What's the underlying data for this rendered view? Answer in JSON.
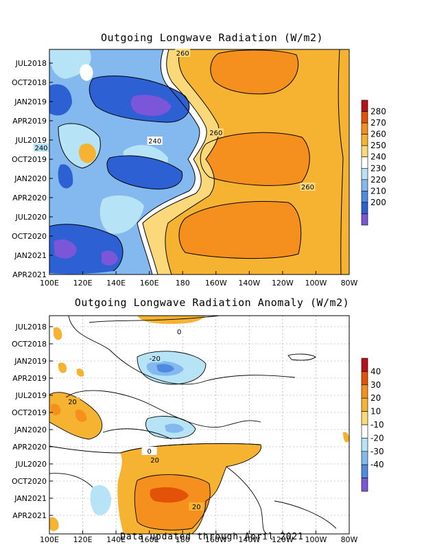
{
  "footer": "Data updated through April 2021",
  "chart_data": [
    {
      "type": "heatmap",
      "title": "Outgoing Longwave Radiation (W/m2)",
      "x_tick_labels": [
        "100E",
        "120E",
        "140E",
        "160E",
        "180",
        "160W",
        "140W",
        "120W",
        "100W",
        "80W"
      ],
      "y_tick_labels": [
        "JUL2018",
        "OCT2018",
        "JAN2019",
        "APR2019",
        "JUL2019",
        "OCT2019",
        "JAN2020",
        "APR2020",
        "JUL2020",
        "OCT2020",
        "JAN2021",
        "APR2021"
      ],
      "colorbar": {
        "levels": [
          "280",
          "270",
          "260",
          "250",
          "240",
          "230",
          "220",
          "210",
          "200"
        ],
        "colors": [
          "#b5121b",
          "#e35209",
          "#f58f1e",
          "#f6b332",
          "#fbd87a",
          "#ffffff",
          "#b6e3f5",
          "#84b9f0",
          "#4d8ae0",
          "#2c60d3",
          "#7b56d8"
        ]
      },
      "contour_labels": [
        {
          "text": "260",
          "x": "180",
          "y": "JUL2018"
        },
        {
          "text": "260",
          "x": "160W",
          "y": "JUL2019"
        },
        {
          "text": "240",
          "x": "160E",
          "y": "JUL2019"
        },
        {
          "text": "240",
          "x": "100E",
          "y": "JUL2019"
        },
        {
          "text": "260",
          "x": "100W",
          "y": "APR2020"
        }
      ]
    },
    {
      "type": "heatmap",
      "title": "Outgoing Longwave Radiation Anomaly (W/m2)",
      "x_tick_labels": [
        "100E",
        "120E",
        "140E",
        "160E",
        "180",
        "160W",
        "140W",
        "120W",
        "100W",
        "80W"
      ],
      "y_tick_labels": [
        "JUL2018",
        "OCT2018",
        "JAN2019",
        "APR2019",
        "JUL2019",
        "OCT2019",
        "JAN2020",
        "APR2020",
        "JUL2020",
        "OCT2020",
        "JAN2021",
        "APR2021"
      ],
      "grid": true,
      "colorbar": {
        "levels": [
          "40",
          "30",
          "20",
          "10",
          "-10",
          "-20",
          "-30",
          "-40"
        ],
        "colors": [
          "#b5121b",
          "#e35209",
          "#f58f1e",
          "#f6b332",
          "#fbd87a",
          "#ffffff",
          "#b6e3f5",
          "#84b9f0",
          "#4d8ae0",
          "#7b56d8"
        ]
      },
      "contour_labels": [
        {
          "text": "0",
          "x": "180",
          "y": "JUL2018"
        },
        {
          "text": "-20",
          "x": "160E",
          "y": "JAN2019"
        },
        {
          "text": "20",
          "x": "120E",
          "y": "JUL2019"
        },
        {
          "text": "0",
          "x": "160E",
          "y": "APR2020"
        },
        {
          "text": "20",
          "x": "160E",
          "y": "JUL2020"
        },
        {
          "text": "20",
          "x": "180",
          "y": "JAN2021"
        }
      ]
    }
  ]
}
